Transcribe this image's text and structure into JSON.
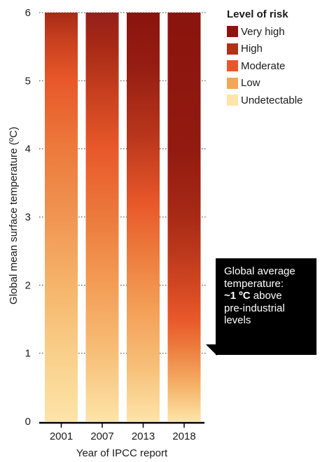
{
  "chart_data": {
    "type": "bar",
    "categories": [
      "2001",
      "2007",
      "2013",
      "2018"
    ],
    "xlabel": "Year of IPCC report",
    "ylabel": "Global mean surface temperature (ºC)",
    "ylim": [
      0,
      6
    ],
    "yticks": [
      "0",
      "1",
      "2",
      "3",
      "4",
      "5",
      "6"
    ],
    "grid": "dotted horizontal",
    "legend_position": "top-right",
    "legend_title": "Level of risk",
    "levels": [
      {
        "name": "Very high",
        "color": "#8c1410"
      },
      {
        "name": "High",
        "color": "#b0301a"
      },
      {
        "name": "Moderate",
        "color": "#e8582a"
      },
      {
        "name": "Low",
        "color": "#f3a55a"
      },
      {
        "name": "Undetectable",
        "color": "#fde4a8"
      }
    ],
    "bars": [
      {
        "category": "2001",
        "top": 6,
        "gradient": [
          [
            0,
            "#fde4a8"
          ],
          [
            1.0,
            "#f9cf8a"
          ],
          [
            2.0,
            "#f5b46a"
          ],
          [
            3.0,
            "#f09552"
          ],
          [
            4.0,
            "#ec7a3c"
          ],
          [
            5.0,
            "#e8582a"
          ],
          [
            5.6,
            "#c8401f"
          ],
          [
            6,
            "#a82a16"
          ]
        ]
      },
      {
        "category": "2007",
        "top": 6,
        "gradient": [
          [
            0,
            "#fde4a8"
          ],
          [
            1.0,
            "#f7bf78"
          ],
          [
            2.0,
            "#f39d56"
          ],
          [
            3.0,
            "#ec7a3c"
          ],
          [
            4.0,
            "#e8582a"
          ],
          [
            4.8,
            "#c8401f"
          ],
          [
            5.5,
            "#a82a16"
          ],
          [
            6,
            "#94201a"
          ]
        ]
      },
      {
        "category": "2013",
        "top": 6,
        "gradient": [
          [
            0,
            "#fde4a8"
          ],
          [
            0.8,
            "#f7bf78"
          ],
          [
            1.7,
            "#f39d56"
          ],
          [
            2.5,
            "#ec7a3c"
          ],
          [
            3.2,
            "#e8582a"
          ],
          [
            4.2,
            "#b8361c"
          ],
          [
            5.2,
            "#961d12"
          ],
          [
            6,
            "#8a140e"
          ]
        ]
      },
      {
        "category": "2018",
        "top": 6,
        "gradient": [
          [
            0,
            "#fde4a8"
          ],
          [
            0.5,
            "#f5b46a"
          ],
          [
            1.1,
            "#ec7a3c"
          ],
          [
            1.5,
            "#e8582a"
          ],
          [
            2.2,
            "#c8401f"
          ],
          [
            3.0,
            "#a82a16"
          ],
          [
            4.0,
            "#921a10"
          ],
          [
            6,
            "#8a140e"
          ]
        ]
      }
    ]
  },
  "callout": {
    "line1": "Global average",
    "line2": "temperature:",
    "bold": "~1 ºC",
    "line3_rest": " above",
    "line4": "pre-industrial",
    "line5": "levels"
  }
}
